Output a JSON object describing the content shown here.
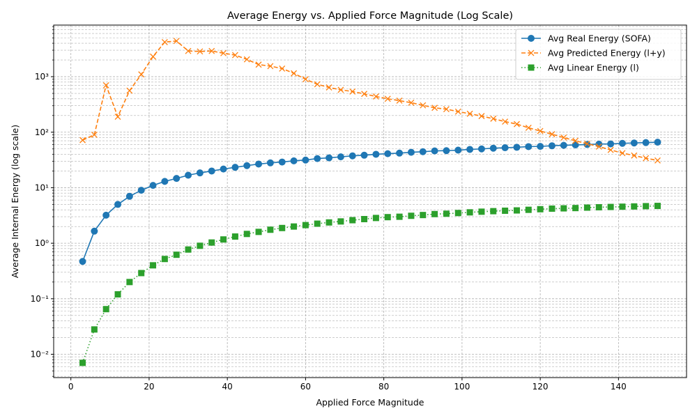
{
  "chart_data": {
    "type": "line",
    "title": "Average Energy vs. Applied Force Magnitude (Log Scale)",
    "xlabel": "Applied Force Magnitude",
    "ylabel": "Average Internal Energy (log scale)",
    "xlim": [
      -4.4,
      157.4
    ],
    "ylim": [
      0.0038,
      8500
    ],
    "y_scale": "log",
    "grid": true,
    "legend_position": "top-right",
    "x_ticks": [
      0,
      20,
      40,
      60,
      80,
      100,
      120,
      140
    ],
    "x_tick_labels": [
      "0",
      "20",
      "40",
      "60",
      "80",
      "100",
      "120",
      "140"
    ],
    "y_ticks": [
      0.01,
      0.1,
      1,
      10,
      100,
      1000
    ],
    "y_tick_labels": [
      "10⁻²",
      "10⁻¹",
      "10⁰",
      "10¹",
      "10²",
      "10³"
    ],
    "x": [
      3,
      6,
      9,
      12,
      15,
      18,
      21,
      24,
      27,
      30,
      33,
      36,
      39,
      42,
      45,
      48,
      51,
      54,
      57,
      60,
      63,
      66,
      69,
      72,
      75,
      78,
      81,
      84,
      87,
      90,
      93,
      96,
      99,
      102,
      105,
      108,
      111,
      114,
      117,
      120,
      123,
      126,
      129,
      132,
      135,
      138,
      141,
      144,
      147,
      150
    ],
    "series": [
      {
        "name": "Avg Real Energy (SOFA)",
        "color": "#1f77b4",
        "line_style": "solid",
        "marker": "circle",
        "values": [
          0.47,
          1.65,
          3.2,
          5.0,
          7.0,
          9.0,
          11.0,
          13.0,
          14.7,
          16.8,
          18.5,
          20.0,
          21.7,
          23.3,
          25.0,
          26.7,
          28.0,
          29.0,
          30.5,
          31.5,
          33.5,
          34.5,
          36.0,
          37.5,
          38.5,
          40.0,
          41.0,
          42.0,
          43.5,
          44.5,
          46.0,
          46.5,
          47.5,
          49.0,
          50.0,
          51.5,
          52.5,
          53.5,
          55.0,
          55.5,
          57.0,
          58.0,
          59.0,
          60.0,
          61.0,
          61.5,
          63.0,
          64.0,
          65.0,
          66.0
        ]
      },
      {
        "name": "Avg Predicted Energy (l+y)",
        "color": "#ff7f0e",
        "line_style": "dashed",
        "marker": "x",
        "values": [
          72,
          90,
          700,
          190,
          560,
          1100,
          2300,
          4200,
          4400,
          2900,
          2850,
          2900,
          2650,
          2450,
          2050,
          1650,
          1550,
          1400,
          1150,
          900,
          730,
          640,
          580,
          540,
          490,
          440,
          400,
          370,
          340,
          305,
          275,
          260,
          235,
          215,
          195,
          175,
          155,
          140,
          120,
          105,
          92,
          80,
          70,
          62,
          55,
          48,
          42,
          38,
          34,
          31
        ]
      },
      {
        "name": "Avg Linear Energy (l)",
        "color": "#2ca02c",
        "line_style": "dotted",
        "marker": "square",
        "values": [
          0.007,
          0.028,
          0.065,
          0.12,
          0.2,
          0.29,
          0.4,
          0.52,
          0.62,
          0.77,
          0.9,
          1.03,
          1.17,
          1.32,
          1.47,
          1.6,
          1.75,
          1.88,
          2.0,
          2.12,
          2.25,
          2.37,
          2.47,
          2.6,
          2.72,
          2.85,
          2.95,
          3.0,
          3.12,
          3.22,
          3.35,
          3.4,
          3.5,
          3.6,
          3.7,
          3.78,
          3.85,
          3.9,
          4.0,
          4.1,
          4.2,
          4.25,
          4.3,
          4.38,
          4.45,
          4.5,
          4.55,
          4.6,
          4.65,
          4.7
        ]
      }
    ]
  }
}
